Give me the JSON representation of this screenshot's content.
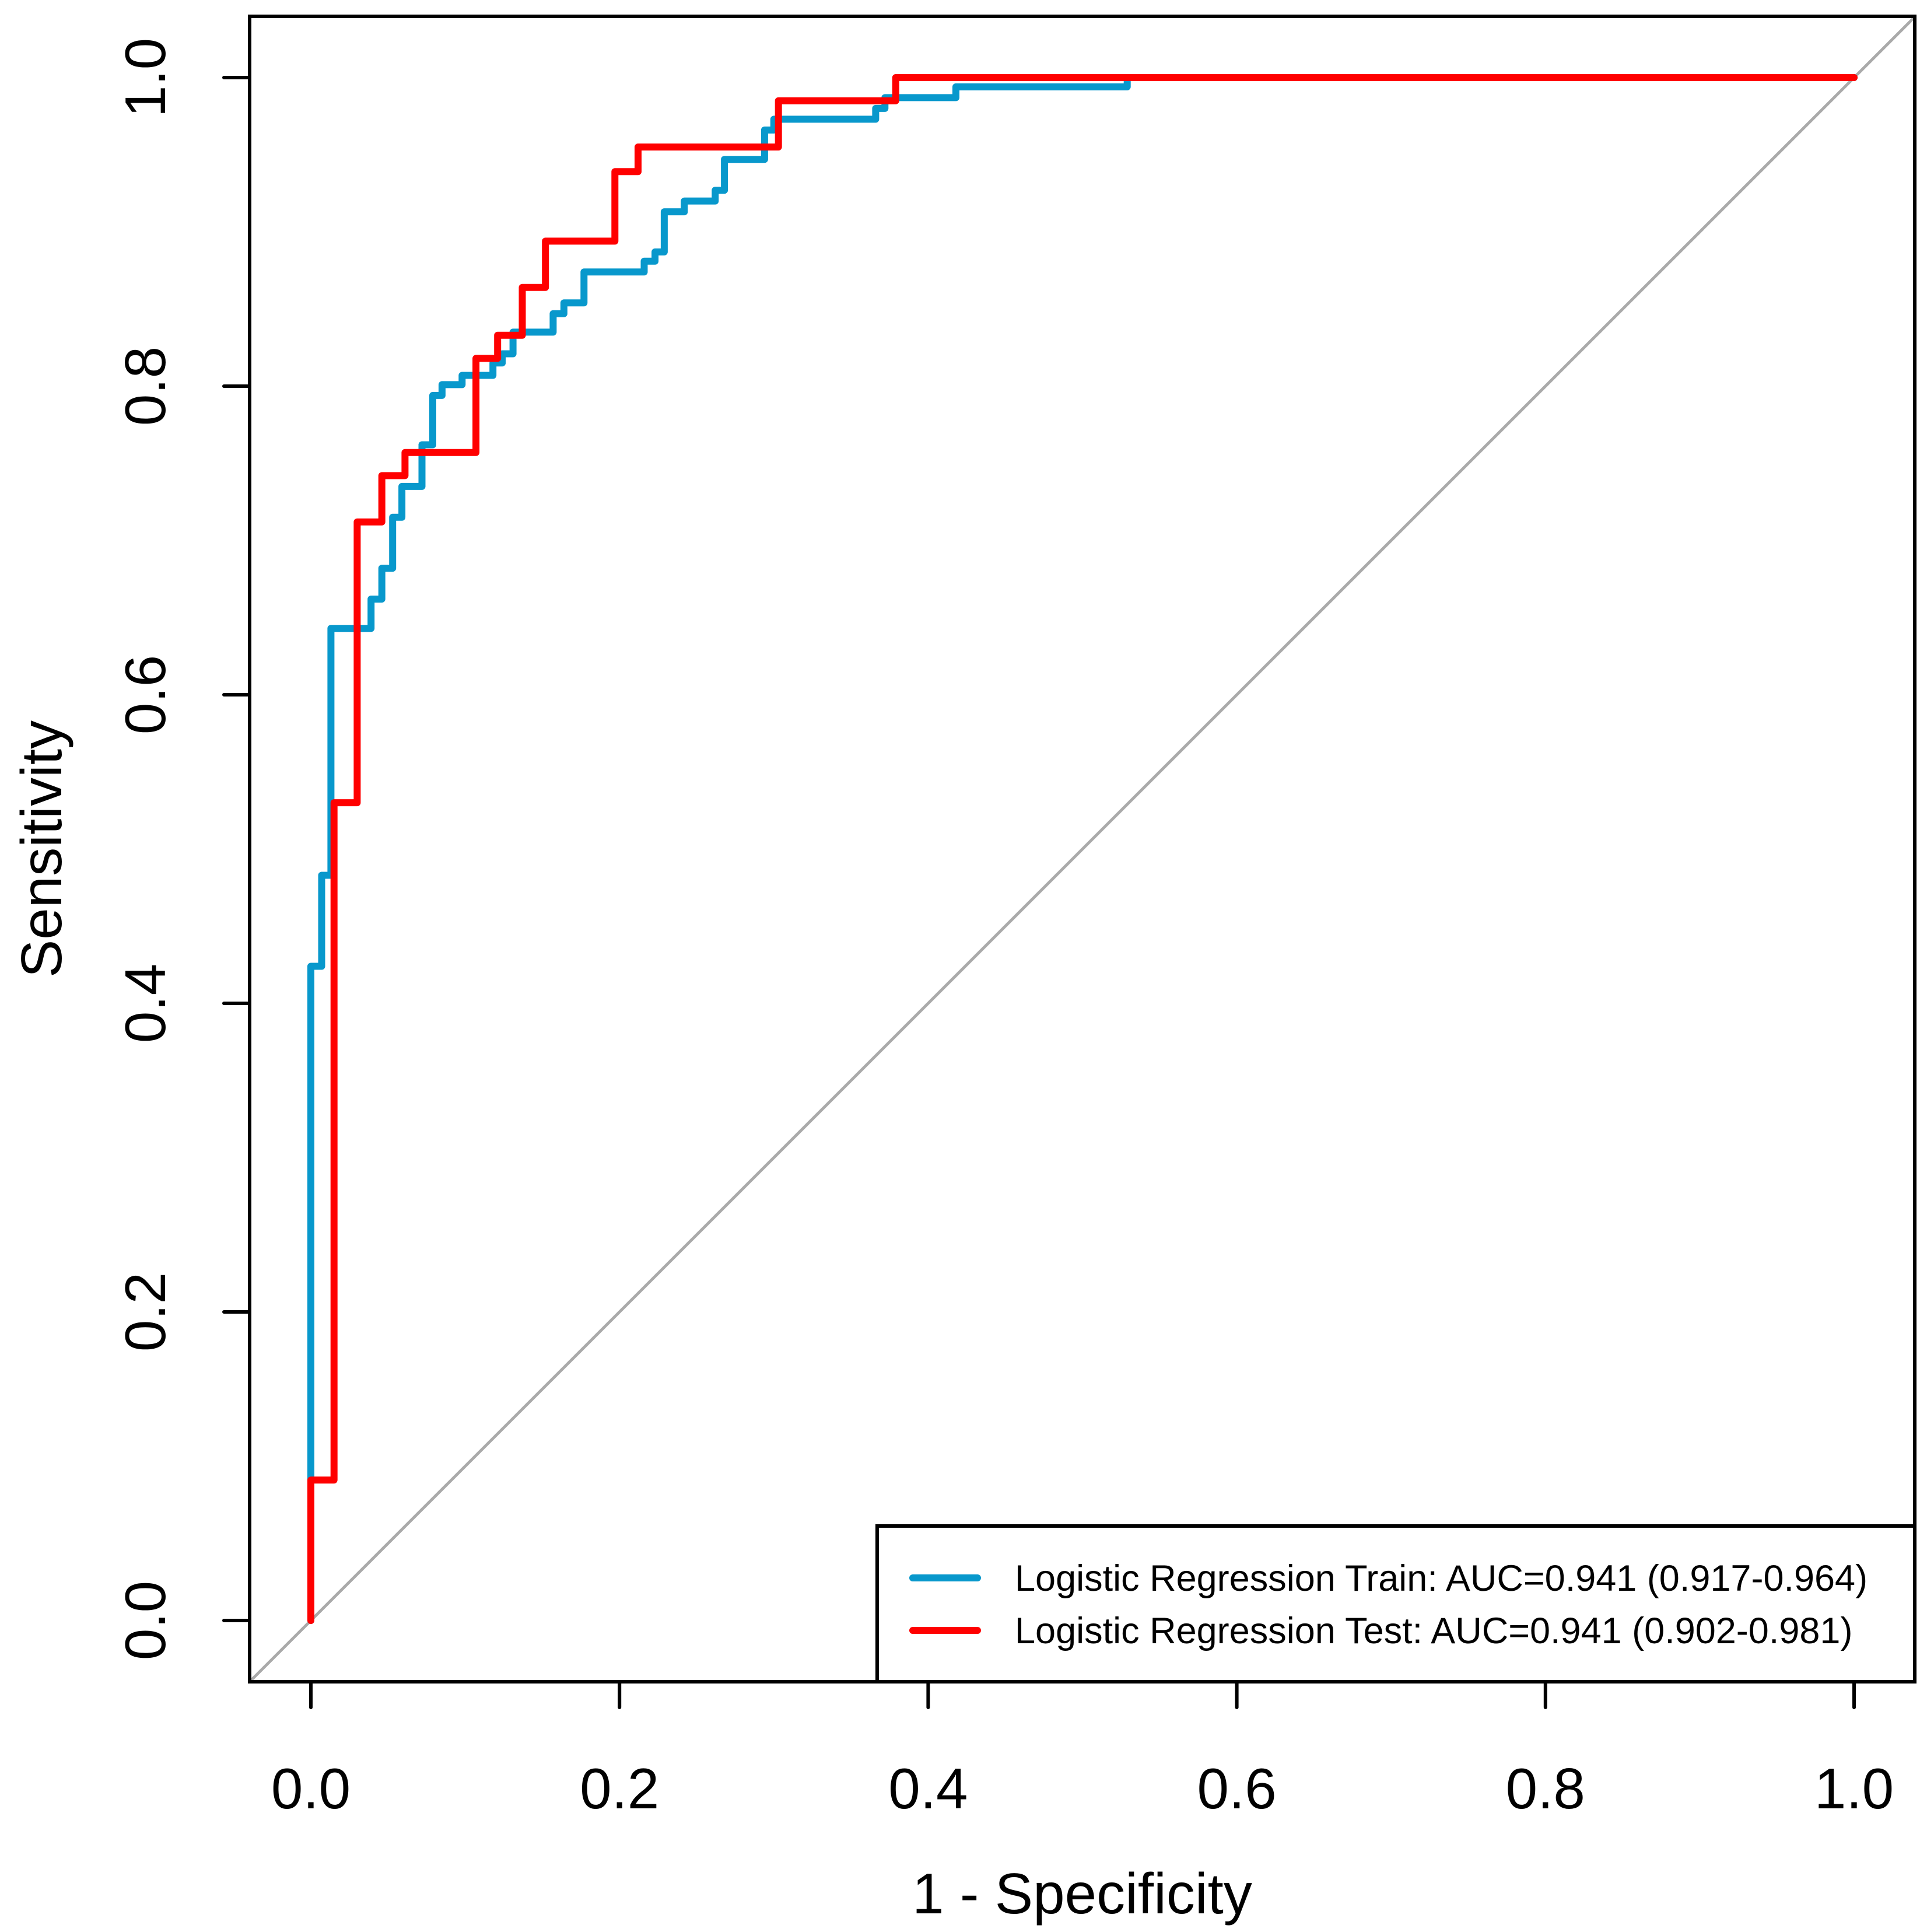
{
  "chart_data": {
    "type": "line",
    "title": "",
    "xlabel": "1 - Specificity",
    "ylabel": "Sensitivity",
    "xlim": [
      0,
      1
    ],
    "ylim": [
      0,
      1
    ],
    "x_ticks": [
      "0.0",
      "0.2",
      "0.4",
      "0.6",
      "0.8",
      "1.0"
    ],
    "y_ticks": [
      "0.0",
      "0.2",
      "0.4",
      "0.6",
      "0.8",
      "1.0"
    ],
    "x_tick_values": [
      0,
      0.2,
      0.4,
      0.6,
      0.8,
      1.0
    ],
    "y_tick_values": [
      0,
      0.2,
      0.4,
      0.6,
      0.8,
      1.0
    ],
    "grid": false,
    "legend_position": "bottom-right",
    "reference_line": {
      "from": [
        0,
        0
      ],
      "to": [
        1,
        1
      ],
      "color": "#AAAAAA"
    },
    "series": [
      {
        "name": "Logistic Regression Train",
        "legend_label": "Logistic Regression Train: AUC=0.941 (0.917-0.964)",
        "auc": 0.941,
        "ci": [
          0.917,
          0.964
        ],
        "color": "#0898CC",
        "step": true,
        "x": [
          0,
          0,
          0.007,
          0.007,
          0.013,
          0.013,
          0.039,
          0.039,
          0.046,
          0.046,
          0.053,
          0.053,
          0.059,
          0.059,
          0.072,
          0.072,
          0.079,
          0.079,
          0.085,
          0.085,
          0.098,
          0.098,
          0.118,
          0.118,
          0.124,
          0.124,
          0.131,
          0.131,
          0.157,
          0.157,
          0.164,
          0.164,
          0.177,
          0.177,
          0.216,
          0.216,
          0.223,
          0.223,
          0.229,
          0.229,
          0.242,
          0.242,
          0.262,
          0.262,
          0.268,
          0.268,
          0.294,
          0.294,
          0.3,
          0.3,
          0.366,
          0.366,
          0.372,
          0.372,
          0.418,
          0.418,
          0.529,
          0.529,
          1.0
        ],
        "y": [
          0,
          0.424,
          0.424,
          0.483,
          0.483,
          0.643,
          0.643,
          0.662,
          0.662,
          0.682,
          0.682,
          0.715,
          0.715,
          0.735,
          0.735,
          0.762,
          0.762,
          0.794,
          0.794,
          0.801,
          0.801,
          0.807,
          0.807,
          0.815,
          0.815,
          0.821,
          0.821,
          0.835,
          0.835,
          0.847,
          0.847,
          0.854,
          0.854,
          0.874,
          0.874,
          0.881,
          0.881,
          0.887,
          0.887,
          0.913,
          0.913,
          0.92,
          0.92,
          0.927,
          0.927,
          0.947,
          0.947,
          0.966,
          0.966,
          0.973,
          0.973,
          0.98,
          0.98,
          0.987,
          0.987,
          0.994,
          0.994,
          1.0,
          1.0
        ]
      },
      {
        "name": "Logistic Regression Test",
        "legend_label": "Logistic Regression Test: AUC=0.941 (0.902-0.981)",
        "auc": 0.941,
        "ci": [
          0.902,
          0.981
        ],
        "color": "#FF0000",
        "step": true,
        "x": [
          0,
          0,
          0.015,
          0.015,
          0.03,
          0.03,
          0.046,
          0.046,
          0.061,
          0.061,
          0.107,
          0.107,
          0.121,
          0.121,
          0.137,
          0.137,
          0.152,
          0.152,
          0.197,
          0.197,
          0.212,
          0.212,
          0.303,
          0.303,
          0.379,
          0.379,
          1.0
        ],
        "y": [
          0,
          0.091,
          0.091,
          0.53,
          0.53,
          0.712,
          0.712,
          0.742,
          0.742,
          0.757,
          0.757,
          0.818,
          0.818,
          0.833,
          0.833,
          0.864,
          0.864,
          0.894,
          0.894,
          0.939,
          0.939,
          0.955,
          0.955,
          0.985,
          0.985,
          1.0,
          1.0
        ]
      }
    ]
  }
}
